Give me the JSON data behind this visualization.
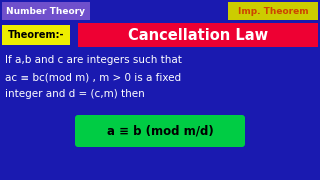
{
  "bg_color": "#1a1ab0",
  "top_left_label": "Number Theory",
  "top_left_bg": "#7050cc",
  "top_right_label": "Imp. Theorem",
  "top_right_bg": "#cccc00",
  "top_right_fg": "#cc4400",
  "theorem_label": "Theorem:-",
  "theorem_bg": "#eeee00",
  "theorem_fg": "#000000",
  "title": "Cancellation Law",
  "title_bg": "#ee0033",
  "title_fg": "#ffffff",
  "body_line1": "If a,b and c are integers such that",
  "body_line2": "ac ≡ bc(mod m) , m > 0 is a fixed",
  "body_line3": "integer and d = (c,m) then",
  "body_color": "#ffffff",
  "conclusion": "a ≡ b (mod m/d)",
  "conclusion_bg": "#00cc44",
  "conclusion_fg": "#000000"
}
